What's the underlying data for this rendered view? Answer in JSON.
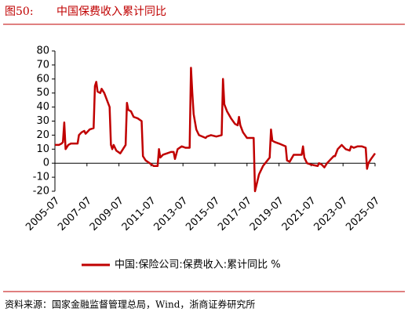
{
  "chart_data": {
    "type": "line",
    "figure_number": "图50:",
    "title": "中国保费收入累计同比",
    "source": "资料来源：国家金融监督管理总局，Wind，浙商证券研究所",
    "x": [
      "2005-07",
      "2005-10",
      "2005-12",
      "2006-01",
      "2006-02",
      "2006-03",
      "2006-05",
      "2006-07",
      "2006-10",
      "2006-12",
      "2007-01",
      "2007-03",
      "2007-05",
      "2007-06",
      "2007-09",
      "2007-12",
      "2008-01",
      "2008-02",
      "2008-03",
      "2008-05",
      "2008-06",
      "2008-08",
      "2008-10",
      "2008-12",
      "2009-01",
      "2009-02",
      "2009-03",
      "2009-05",
      "2009-08",
      "2009-10",
      "2009-12",
      "2010-01",
      "2010-02",
      "2010-04",
      "2010-06",
      "2010-09",
      "2010-12",
      "2011-01",
      "2011-03",
      "2011-06",
      "2011-09",
      "2011-12",
      "2012-01",
      "2012-02",
      "2012-04",
      "2012-07",
      "2012-10",
      "2012-12",
      "2013-01",
      "2013-03",
      "2013-06",
      "2013-09",
      "2013-12",
      "2014-01",
      "2014-02",
      "2014-03",
      "2014-05",
      "2014-07",
      "2014-12",
      "2015-01",
      "2015-04",
      "2015-08",
      "2015-12",
      "2016-01",
      "2016-02",
      "2016-04",
      "2016-07",
      "2016-10",
      "2016-12",
      "2017-01",
      "2017-02",
      "2017-04",
      "2017-07",
      "2017-10",
      "2017-12",
      "2018-01",
      "2018-02",
      "2018-04",
      "2018-07",
      "2018-12",
      "2019-01",
      "2019-02",
      "2019-04",
      "2019-07",
      "2019-12",
      "2020-01",
      "2020-03",
      "2020-06",
      "2020-10",
      "2020-12",
      "2021-01",
      "2021-02",
      "2021-04",
      "2021-07",
      "2021-12",
      "2022-01",
      "2022-03",
      "2022-05",
      "2022-07",
      "2022-12",
      "2023-01",
      "2023-03",
      "2023-06",
      "2023-09",
      "2023-12",
      "2024-01",
      "2024-03",
      "2024-06",
      "2024-09",
      "2024-12",
      "2025-01",
      "2025-02",
      "2025-04",
      "2025-07"
    ],
    "series": [
      {
        "name": "中国:保险公司:保费收入:累计同比 %",
        "color": "#c00000",
        "values": [
          13,
          13,
          14,
          15,
          29,
          10,
          13,
          14,
          14,
          14,
          20,
          22,
          23,
          21,
          24,
          25,
          55,
          58,
          51,
          50,
          53,
          50,
          45,
          40,
          13,
          10,
          13,
          9,
          7,
          10,
          13,
          43,
          38,
          37,
          33,
          32,
          30,
          5,
          2,
          0,
          -2,
          -2,
          10,
          4,
          6,
          7,
          8,
          8,
          3,
          10,
          12,
          11,
          11,
          68,
          50,
          35,
          24,
          20,
          18,
          19,
          20,
          19,
          20,
          60,
          42,
          37,
          32,
          28,
          27,
          33,
          27,
          22,
          18,
          18,
          18,
          -20,
          -16,
          -8,
          -2,
          4,
          24,
          16,
          15,
          14,
          12,
          2,
          1,
          6,
          6,
          6,
          12,
          4,
          0,
          -1,
          -2,
          0,
          -1,
          -3,
          0,
          5,
          5,
          10,
          13,
          10,
          9,
          12,
          11,
          12,
          12,
          11,
          -4,
          0,
          3,
          7
        ]
      }
    ],
    "xlim": [
      "2005-07",
      "2025-07"
    ],
    "xticks": [
      "2005-07",
      "2007-07",
      "2009-07",
      "2011-07",
      "2013-07",
      "2015-07",
      "2017-07",
      "2019-07",
      "2021-07",
      "2023-07",
      "2025-07"
    ],
    "ylim": [
      -20,
      80
    ],
    "yticks": [
      -20,
      -10,
      0,
      10,
      20,
      30,
      40,
      50,
      60,
      70,
      80
    ]
  }
}
